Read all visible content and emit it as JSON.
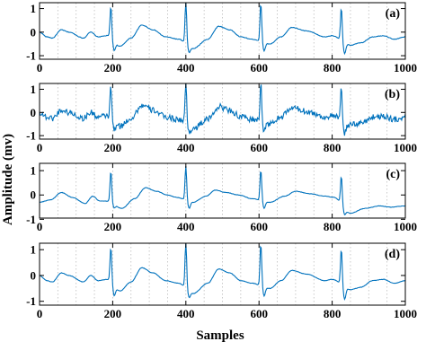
{
  "figure": {
    "xlabel": "Samples",
    "ylabel": "Amplitude (mv)"
  },
  "chart_data": {
    "type": "line",
    "xlabel": "Samples",
    "ylabel": "Amplitude (mv)",
    "xlim": [
      0,
      1000
    ],
    "x_ticks": [
      0,
      200,
      400,
      600,
      800,
      1000
    ],
    "grid": "vertical dotted lines every 50 samples",
    "line_color": "#0072BD",
    "panels": [
      {
        "label": "(a)",
        "ylim": [
          -1.15,
          1.25
        ],
        "y_ticks": [
          -1,
          0,
          1
        ],
        "noise": 0.012,
        "beats": [
          {
            "x": 195,
            "r": 1.1,
            "s": -0.85
          },
          {
            "x": 400,
            "r": 1.35,
            "s": -0.9
          },
          {
            "x": 605,
            "r": 1.25,
            "s": -0.85
          },
          {
            "x": 825,
            "r": 1.05,
            "s": -1.0
          }
        ],
        "samples": [
          [
            0,
            0.0
          ],
          [
            20,
            -0.2
          ],
          [
            35,
            -0.25
          ],
          [
            60,
            0.1
          ],
          [
            80,
            0.0
          ],
          [
            120,
            -0.25
          ],
          [
            140,
            0.0
          ],
          [
            160,
            -0.2
          ],
          [
            185,
            -0.15
          ],
          [
            220,
            -0.6
          ],
          [
            250,
            -0.25
          ],
          [
            280,
            0.3
          ],
          [
            310,
            0.1
          ],
          [
            345,
            -0.2
          ],
          [
            380,
            -0.3
          ],
          [
            420,
            -0.7
          ],
          [
            460,
            -0.3
          ],
          [
            490,
            0.25
          ],
          [
            520,
            0.1
          ],
          [
            550,
            -0.2
          ],
          [
            580,
            -0.3
          ],
          [
            630,
            -0.5
          ],
          [
            660,
            -0.2
          ],
          [
            690,
            0.2
          ],
          [
            730,
            0.05
          ],
          [
            780,
            -0.2
          ],
          [
            800,
            -0.15
          ],
          [
            850,
            -0.55
          ],
          [
            880,
            -0.45
          ],
          [
            910,
            -0.2
          ],
          [
            940,
            -0.15
          ],
          [
            970,
            -0.3
          ],
          [
            1000,
            -0.2
          ]
        ]
      },
      {
        "label": "(b)",
        "ylim": [
          -1.15,
          1.25
        ],
        "y_ticks": [
          -1,
          0,
          1
        ],
        "noise": 0.13,
        "beats": [
          {
            "x": 195,
            "r": 1.1,
            "s": -0.85
          },
          {
            "x": 400,
            "r": 1.35,
            "s": -0.9
          },
          {
            "x": 605,
            "r": 1.25,
            "s": -0.85
          },
          {
            "x": 825,
            "r": 1.05,
            "s": -1.0
          }
        ],
        "samples": [
          [
            0,
            0.0
          ],
          [
            20,
            -0.2
          ],
          [
            35,
            -0.25
          ],
          [
            60,
            0.1
          ],
          [
            80,
            0.0
          ],
          [
            120,
            -0.25
          ],
          [
            140,
            0.0
          ],
          [
            160,
            -0.2
          ],
          [
            185,
            -0.15
          ],
          [
            220,
            -0.6
          ],
          [
            250,
            -0.25
          ],
          [
            280,
            0.3
          ],
          [
            310,
            0.1
          ],
          [
            345,
            -0.2
          ],
          [
            380,
            -0.3
          ],
          [
            420,
            -0.7
          ],
          [
            460,
            -0.3
          ],
          [
            490,
            0.25
          ],
          [
            520,
            0.1
          ],
          [
            550,
            -0.2
          ],
          [
            580,
            -0.3
          ],
          [
            630,
            -0.5
          ],
          [
            660,
            -0.2
          ],
          [
            690,
            0.2
          ],
          [
            730,
            0.05
          ],
          [
            780,
            -0.2
          ],
          [
            800,
            -0.15
          ],
          [
            850,
            -0.55
          ],
          [
            880,
            -0.45
          ],
          [
            910,
            -0.2
          ],
          [
            940,
            -0.15
          ],
          [
            970,
            -0.3
          ],
          [
            1000,
            -0.2
          ]
        ]
      },
      {
        "label": "(c)",
        "ylim": [
          -0.95,
          1.3
        ],
        "y_ticks": [
          -1,
          0,
          1
        ],
        "noise": 0.008,
        "beats": [
          {
            "x": 195,
            "r": 1.0,
            "s": -0.55
          },
          {
            "x": 400,
            "r": 1.2,
            "s": -0.6
          },
          {
            "x": 605,
            "r": 1.05,
            "s": -0.6
          },
          {
            "x": 825,
            "r": 0.8,
            "s": -0.85
          }
        ],
        "samples": [
          [
            0,
            -0.3
          ],
          [
            30,
            -0.2
          ],
          [
            60,
            0.1
          ],
          [
            90,
            -0.1
          ],
          [
            125,
            -0.35
          ],
          [
            145,
            -0.05
          ],
          [
            165,
            -0.25
          ],
          [
            185,
            -0.25
          ],
          [
            225,
            -0.55
          ],
          [
            260,
            -0.15
          ],
          [
            290,
            0.3
          ],
          [
            320,
            0.15
          ],
          [
            350,
            0.0
          ],
          [
            375,
            -0.1
          ],
          [
            420,
            -0.3
          ],
          [
            455,
            -0.05
          ],
          [
            480,
            0.2
          ],
          [
            510,
            0.1
          ],
          [
            545,
            0.0
          ],
          [
            580,
            -0.15
          ],
          [
            630,
            -0.3
          ],
          [
            670,
            -0.05
          ],
          [
            700,
            0.15
          ],
          [
            740,
            0.05
          ],
          [
            780,
            -0.05
          ],
          [
            805,
            -0.1
          ],
          [
            850,
            -0.75
          ],
          [
            890,
            -0.55
          ],
          [
            930,
            -0.45
          ],
          [
            960,
            -0.5
          ],
          [
            1000,
            -0.45
          ]
        ]
      },
      {
        "label": "(d)",
        "ylim": [
          -1.15,
          1.25
        ],
        "y_ticks": [
          -1,
          0,
          1
        ],
        "noise": 0.008,
        "beats": [
          {
            "x": 195,
            "r": 1.1,
            "s": -0.85
          },
          {
            "x": 400,
            "r": 1.35,
            "s": -0.9
          },
          {
            "x": 605,
            "r": 1.25,
            "s": -0.85
          },
          {
            "x": 825,
            "r": 1.05,
            "s": -1.0
          }
        ],
        "samples": [
          [
            0,
            0.0
          ],
          [
            20,
            -0.2
          ],
          [
            35,
            -0.25
          ],
          [
            60,
            0.1
          ],
          [
            80,
            0.0
          ],
          [
            120,
            -0.25
          ],
          [
            140,
            0.0
          ],
          [
            160,
            -0.2
          ],
          [
            185,
            -0.15
          ],
          [
            220,
            -0.6
          ],
          [
            250,
            -0.25
          ],
          [
            280,
            0.3
          ],
          [
            310,
            0.1
          ],
          [
            345,
            -0.2
          ],
          [
            380,
            -0.3
          ],
          [
            420,
            -0.7
          ],
          [
            460,
            -0.3
          ],
          [
            490,
            0.25
          ],
          [
            520,
            0.1
          ],
          [
            550,
            -0.2
          ],
          [
            580,
            -0.3
          ],
          [
            630,
            -0.5
          ],
          [
            660,
            -0.2
          ],
          [
            690,
            0.2
          ],
          [
            730,
            0.05
          ],
          [
            780,
            -0.2
          ],
          [
            800,
            -0.15
          ],
          [
            850,
            -0.55
          ],
          [
            880,
            -0.45
          ],
          [
            910,
            -0.2
          ],
          [
            940,
            -0.15
          ],
          [
            970,
            -0.3
          ],
          [
            1000,
            -0.2
          ]
        ]
      }
    ]
  }
}
